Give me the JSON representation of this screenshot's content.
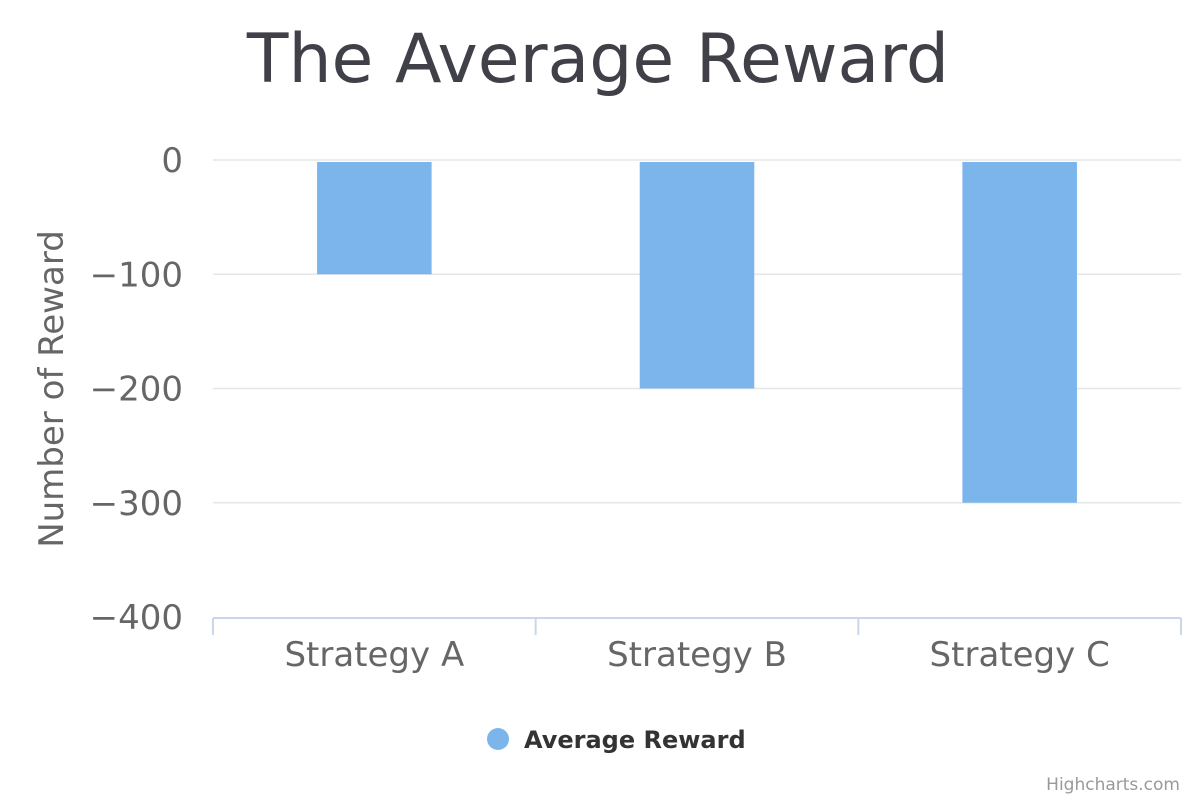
{
  "chart_data": {
    "type": "bar",
    "title": "The Average Reward",
    "ylabel": "Number of Reward",
    "xlabel": "",
    "categories": [
      "Strategy A",
      "Strategy B",
      "Strategy C"
    ],
    "series": [
      {
        "name": "Average Reward",
        "values": [
          -100,
          -200,
          -300
        ],
        "color": "#7cb5ec"
      }
    ],
    "ylim": [
      -400,
      0
    ],
    "yticks": [
      0,
      -100,
      -200,
      -300,
      -400
    ],
    "ytick_labels": [
      "0",
      "−100",
      "−200",
      "−300",
      "−400"
    ],
    "grid": true,
    "legend": "bottom-center"
  },
  "credits": "Highcharts.com"
}
